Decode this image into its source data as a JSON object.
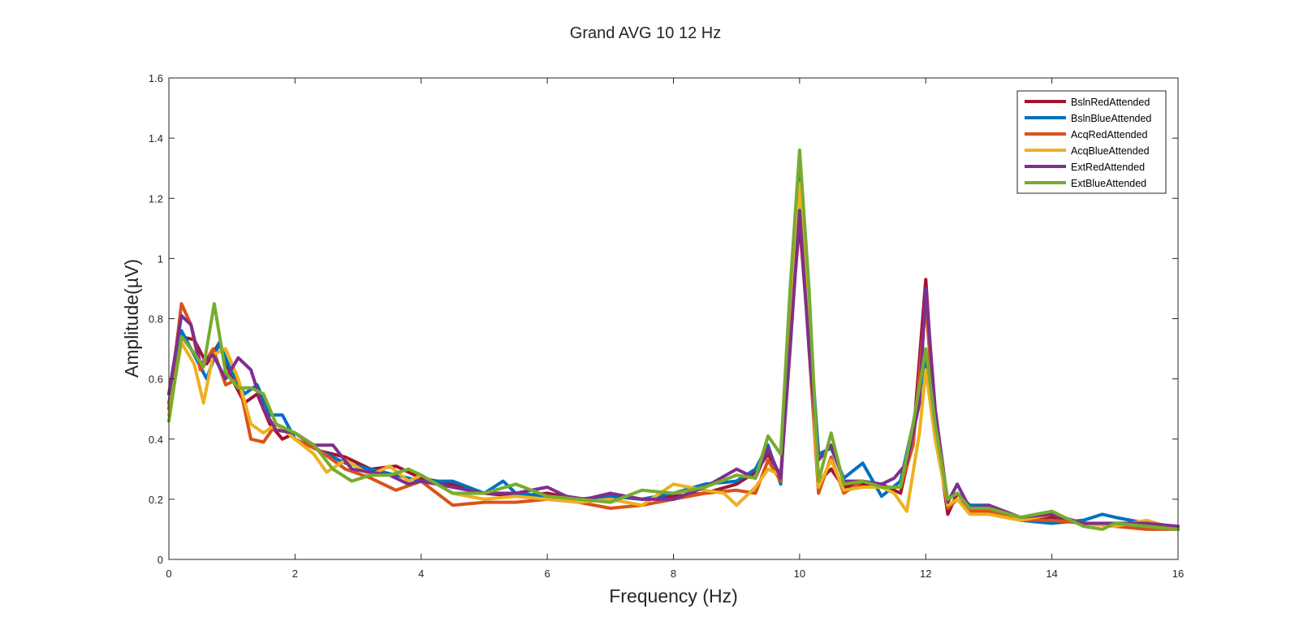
{
  "chart_data": {
    "type": "line",
    "title": "Grand AVG 10  12 Hz",
    "xlabel": "Frequency (Hz)",
    "ylabel": "Amplitude(µV)",
    "xlim": [
      0,
      16
    ],
    "ylim": [
      0,
      1.6
    ],
    "xticks": [
      0,
      2,
      4,
      6,
      8,
      10,
      12,
      14,
      16
    ],
    "xtick_labels": [
      "0",
      "2",
      "4",
      "6",
      "8",
      "10",
      "12",
      "14",
      "16"
    ],
    "yticks": [
      0,
      0.2,
      0.4,
      0.6,
      0.8,
      1.0,
      1.2,
      1.4,
      1.6
    ],
    "ytick_labels": [
      "0",
      "0.2",
      "0.4",
      "0.6",
      "0.8",
      "1",
      "1.2",
      "1.4",
      "1.6"
    ],
    "grid": false,
    "legend_position": "top-right",
    "series": [
      {
        "name": "BslnRedAttended",
        "color": "#A2142F",
        "x": [
          0,
          0.2,
          0.4,
          0.6,
          0.8,
          1.0,
          1.2,
          1.4,
          1.6,
          1.8,
          2.0,
          2.4,
          2.8,
          3.2,
          3.6,
          4.0,
          4.5,
          5.0,
          5.5,
          6.0,
          6.5,
          7.0,
          7.5,
          8.0,
          8.5,
          9.0,
          9.3,
          9.5,
          9.7,
          9.85,
          10.0,
          10.15,
          10.3,
          10.5,
          10.7,
          11.0,
          11.3,
          11.6,
          11.8,
          12.0,
          12.15,
          12.35,
          12.5,
          12.7,
          13.0,
          13.5,
          14.0,
          14.5,
          15.0,
          15.5,
          16.0
        ],
        "y": [
          0.55,
          0.74,
          0.73,
          0.65,
          0.72,
          0.6,
          0.52,
          0.55,
          0.45,
          0.4,
          0.42,
          0.36,
          0.34,
          0.3,
          0.31,
          0.27,
          0.25,
          0.22,
          0.21,
          0.22,
          0.2,
          0.21,
          0.2,
          0.21,
          0.22,
          0.25,
          0.29,
          0.35,
          0.28,
          0.75,
          1.12,
          0.72,
          0.26,
          0.3,
          0.24,
          0.25,
          0.25,
          0.22,
          0.4,
          0.93,
          0.45,
          0.15,
          0.22,
          0.17,
          0.17,
          0.14,
          0.14,
          0.12,
          0.12,
          0.11,
          0.1
        ]
      },
      {
        "name": "BslnBlueAttended",
        "color": "#0072BD",
        "x": [
          0,
          0.2,
          0.4,
          0.6,
          0.8,
          1.0,
          1.2,
          1.4,
          1.6,
          1.8,
          2.0,
          2.4,
          2.8,
          3.2,
          3.6,
          4.0,
          4.5,
          5.0,
          5.3,
          5.5,
          6.0,
          6.5,
          7.0,
          7.5,
          8.0,
          8.5,
          9.0,
          9.3,
          9.5,
          9.7,
          9.85,
          10.0,
          10.15,
          10.3,
          10.5,
          10.7,
          11.0,
          11.3,
          11.6,
          11.8,
          12.0,
          12.15,
          12.35,
          12.5,
          12.7,
          13.0,
          13.5,
          14.0,
          14.5,
          14.8,
          15.0,
          15.5,
          16.0
        ],
        "y": [
          0.52,
          0.76,
          0.68,
          0.6,
          0.72,
          0.62,
          0.55,
          0.58,
          0.48,
          0.48,
          0.4,
          0.36,
          0.32,
          0.3,
          0.28,
          0.26,
          0.26,
          0.22,
          0.26,
          0.22,
          0.21,
          0.2,
          0.21,
          0.2,
          0.22,
          0.25,
          0.26,
          0.3,
          0.38,
          0.25,
          0.8,
          1.28,
          0.8,
          0.35,
          0.37,
          0.27,
          0.32,
          0.21,
          0.26,
          0.45,
          0.66,
          0.4,
          0.2,
          0.22,
          0.18,
          0.18,
          0.13,
          0.12,
          0.13,
          0.15,
          0.14,
          0.12,
          0.1
        ]
      },
      {
        "name": "AcqRedAttended",
        "color": "#D95319",
        "x": [
          0,
          0.2,
          0.35,
          0.5,
          0.7,
          0.9,
          1.1,
          1.3,
          1.5,
          1.7,
          2.0,
          2.4,
          2.8,
          3.2,
          3.6,
          4.0,
          4.5,
          5.0,
          5.5,
          6.0,
          6.5,
          7.0,
          7.5,
          8.0,
          8.5,
          9.0,
          9.3,
          9.5,
          9.7,
          9.85,
          10.0,
          10.15,
          10.3,
          10.5,
          10.7,
          11.0,
          11.3,
          11.6,
          11.8,
          12.0,
          12.15,
          12.35,
          12.5,
          12.7,
          13.0,
          13.5,
          14.0,
          14.5,
          15.0,
          15.5,
          16.0
        ],
        "y": [
          0.5,
          0.85,
          0.78,
          0.63,
          0.7,
          0.58,
          0.6,
          0.4,
          0.39,
          0.45,
          0.4,
          0.36,
          0.3,
          0.27,
          0.23,
          0.26,
          0.18,
          0.19,
          0.19,
          0.2,
          0.19,
          0.17,
          0.18,
          0.2,
          0.22,
          0.23,
          0.22,
          0.33,
          0.26,
          0.78,
          1.2,
          0.7,
          0.22,
          0.34,
          0.22,
          0.26,
          0.24,
          0.24,
          0.38,
          0.85,
          0.45,
          0.17,
          0.2,
          0.16,
          0.16,
          0.13,
          0.13,
          0.12,
          0.11,
          0.1,
          0.1
        ]
      },
      {
        "name": "AcqBlueAttended",
        "color": "#EDB120",
        "x": [
          0,
          0.2,
          0.4,
          0.55,
          0.7,
          0.9,
          1.1,
          1.3,
          1.5,
          1.7,
          2.0,
          2.3,
          2.5,
          2.8,
          3.2,
          3.5,
          3.8,
          4.0,
          4.5,
          5.0,
          5.5,
          6.0,
          6.5,
          7.0,
          7.5,
          8.0,
          8.5,
          8.8,
          9.0,
          9.3,
          9.5,
          9.7,
          9.85,
          10.0,
          10.15,
          10.3,
          10.5,
          10.7,
          11.0,
          11.3,
          11.5,
          11.7,
          11.9,
          12.0,
          12.15,
          12.35,
          12.5,
          12.7,
          13.0,
          13.5,
          14.0,
          14.5,
          15.0,
          15.5,
          16.0
        ],
        "y": [
          0.48,
          0.72,
          0.65,
          0.52,
          0.68,
          0.7,
          0.6,
          0.45,
          0.42,
          0.45,
          0.4,
          0.35,
          0.29,
          0.33,
          0.28,
          0.31,
          0.26,
          0.28,
          0.22,
          0.2,
          0.21,
          0.2,
          0.19,
          0.2,
          0.18,
          0.25,
          0.23,
          0.22,
          0.18,
          0.24,
          0.3,
          0.28,
          0.7,
          1.25,
          0.75,
          0.24,
          0.33,
          0.23,
          0.24,
          0.24,
          0.22,
          0.16,
          0.42,
          0.63,
          0.4,
          0.18,
          0.2,
          0.15,
          0.15,
          0.13,
          0.15,
          0.12,
          0.11,
          0.13,
          0.1
        ]
      },
      {
        "name": "ExtRedAttended",
        "color": "#7E2F8E",
        "x": [
          0,
          0.2,
          0.35,
          0.5,
          0.7,
          0.9,
          1.1,
          1.3,
          1.5,
          1.7,
          2.0,
          2.3,
          2.6,
          2.9,
          3.2,
          3.5,
          3.8,
          4.0,
          4.5,
          5.0,
          5.5,
          6.0,
          6.3,
          6.6,
          7.0,
          7.5,
          8.0,
          8.5,
          9.0,
          9.3,
          9.5,
          9.7,
          9.85,
          10.0,
          10.15,
          10.3,
          10.5,
          10.7,
          11.0,
          11.3,
          11.5,
          11.7,
          11.9,
          12.0,
          12.15,
          12.35,
          12.5,
          12.7,
          13.0,
          13.5,
          14.0,
          14.5,
          15.0,
          15.5,
          16.0
        ],
        "y": [
          0.55,
          0.81,
          0.78,
          0.65,
          0.68,
          0.6,
          0.67,
          0.63,
          0.5,
          0.43,
          0.42,
          0.38,
          0.38,
          0.3,
          0.29,
          0.28,
          0.25,
          0.26,
          0.24,
          0.22,
          0.22,
          0.24,
          0.21,
          0.2,
          0.22,
          0.2,
          0.2,
          0.24,
          0.3,
          0.27,
          0.37,
          0.27,
          0.7,
          1.16,
          0.7,
          0.33,
          0.38,
          0.26,
          0.26,
          0.25,
          0.27,
          0.32,
          0.52,
          0.9,
          0.5,
          0.19,
          0.25,
          0.17,
          0.18,
          0.14,
          0.15,
          0.12,
          0.12,
          0.12,
          0.11
        ]
      },
      {
        "name": "ExtBlueAttended",
        "color": "#77AC30",
        "x": [
          0,
          0.2,
          0.35,
          0.55,
          0.72,
          0.9,
          1.1,
          1.3,
          1.5,
          1.7,
          2.0,
          2.3,
          2.6,
          2.9,
          3.2,
          3.5,
          3.8,
          4.0,
          4.5,
          5.0,
          5.5,
          6.0,
          6.5,
          7.0,
          7.5,
          8.0,
          8.5,
          9.0,
          9.3,
          9.5,
          9.7,
          9.85,
          10.0,
          10.15,
          10.3,
          10.5,
          10.7,
          11.0,
          11.3,
          11.6,
          11.8,
          12.0,
          12.15,
          12.35,
          12.5,
          12.7,
          13.0,
          13.5,
          14.0,
          14.5,
          14.8,
          15.0,
          15.5,
          16.0
        ],
        "y": [
          0.46,
          0.74,
          0.7,
          0.64,
          0.85,
          0.62,
          0.57,
          0.57,
          0.55,
          0.45,
          0.42,
          0.38,
          0.3,
          0.26,
          0.28,
          0.28,
          0.3,
          0.28,
          0.22,
          0.22,
          0.25,
          0.21,
          0.2,
          0.19,
          0.23,
          0.22,
          0.24,
          0.28,
          0.27,
          0.41,
          0.35,
          0.9,
          1.36,
          0.9,
          0.26,
          0.42,
          0.25,
          0.26,
          0.24,
          0.24,
          0.45,
          0.7,
          0.45,
          0.2,
          0.22,
          0.17,
          0.17,
          0.14,
          0.16,
          0.11,
          0.1,
          0.12,
          0.11,
          0.1
        ]
      }
    ]
  }
}
